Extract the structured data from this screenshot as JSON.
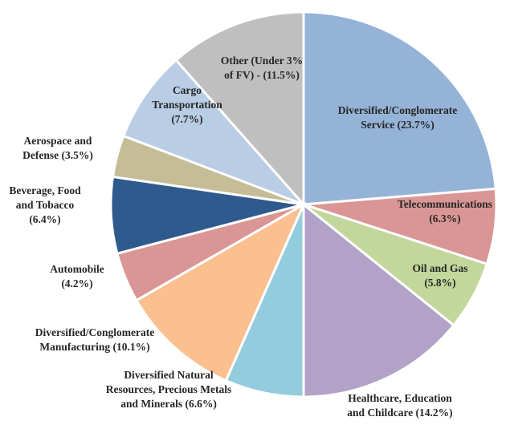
{
  "chart_data": {
    "type": "pie",
    "title": "",
    "slices": [
      {
        "label": "Diversified/Conglomerate Service (23.7%)",
        "lines": [
          "Diversified/Conglomerate",
          "Service (23.7%)"
        ],
        "value": 23.7,
        "color": "#95B3D7"
      },
      {
        "label": "Telecommunications (6.3%)",
        "lines": [
          "Telecommunications",
          "(6.3%)"
        ],
        "value": 6.3,
        "color": "#D99694"
      },
      {
        "label": "Oil and Gas (5.8%)",
        "lines": [
          "Oil and Gas",
          "(5.8%)"
        ],
        "value": 5.8,
        "color": "#C3D69B"
      },
      {
        "label": "Healthcare, Education and Childcare (14.2%)",
        "lines": [
          "Healthcare, Education",
          "and Childcare (14.2%)"
        ],
        "value": 14.2,
        "color": "#B3A2C7"
      },
      {
        "label": "Diversified Natural Resources, Precious Metals and Minerals (6.6%)",
        "lines": [
          "Diversified Natural",
          "Resources, Precious Metals",
          "and Minerals (6.6%)"
        ],
        "value": 6.6,
        "color": "#93CDDD"
      },
      {
        "label": "Diversified/Conglomerate Manufacturing (10.1%)",
        "lines": [
          "Diversified/Conglomerate",
          "Manufacturing (10.1%)"
        ],
        "value": 10.1,
        "color": "#FAC090"
      },
      {
        "label": "Automobile (4.2%)",
        "lines": [
          "Automobile",
          "(4.2%)"
        ],
        "value": 4.2,
        "color": "#DA9694"
      },
      {
        "label": "Beverage, Food and Tobacco (6.4%)",
        "lines": [
          "Beverage, Food",
          "and Tobacco",
          "(6.4%)"
        ],
        "value": 6.4,
        "color": "#2F5A8E"
      },
      {
        "label": "Aerospace and Defense (3.5%)",
        "lines": [
          "Aerospace and",
          "Defense (3.5%)"
        ],
        "value": 3.5,
        "color": "#C4BD97"
      },
      {
        "label": "Cargo Transportation (7.7%)",
        "lines": [
          "Cargo",
          "Transportation",
          "(7.7%)"
        ],
        "value": 7.7,
        "color": "#B9CDE5"
      },
      {
        "label": "Other (Under 3% of FV) - (11.5%)",
        "lines": [
          "Other (Under 3%",
          "of FV) - (11.5%)"
        ],
        "value": 11.5,
        "color": "#BFBFBF"
      }
    ]
  }
}
